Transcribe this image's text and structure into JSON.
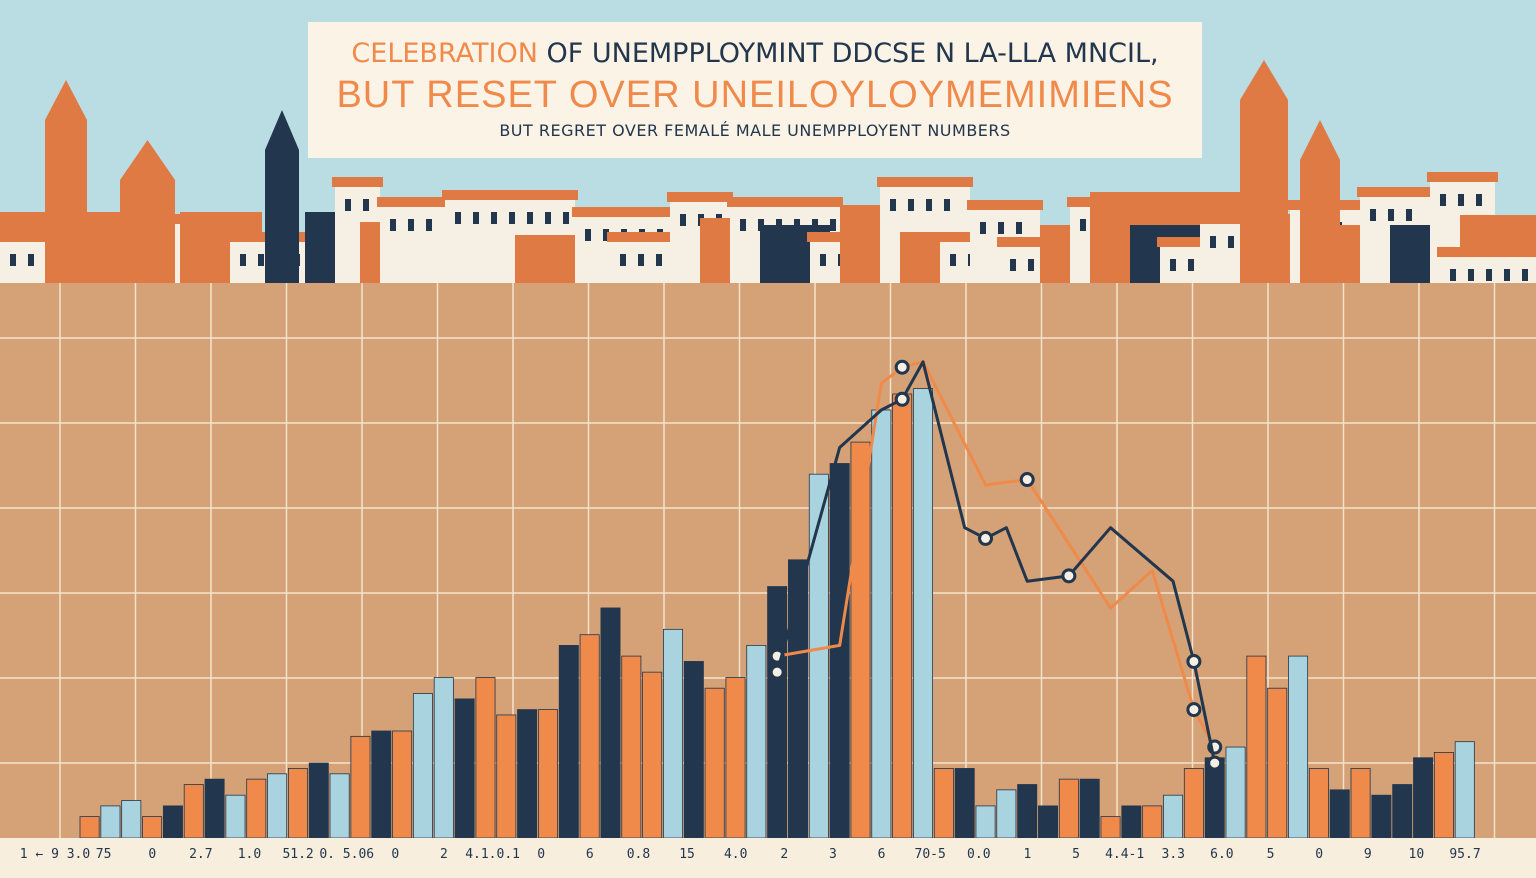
{
  "header": {
    "title_line1_a": "CELEBRATION",
    "title_line1_b": " OF UNEMPPLOYMINT DDCSE N LA-LLA MNCIL,",
    "title_line2": "BUT  RESET OVER UNEILOYLOYMEMIMIENS",
    "subtitle": "BUT REGRET OVER FEMALÉ MALE UNEMPPLOYENT NUMBERS"
  },
  "colors": {
    "sky": "#b9dde3",
    "plot_bg": "#d4a276",
    "grid": "#f3e3cb",
    "orange": "#f08a4b",
    "navy": "#22364d",
    "light_blue": "#a9d4df",
    "roof": "#e07a45",
    "wall": "#f6efe4",
    "base": "#f7eedd"
  },
  "chart_data": {
    "type": "bar",
    "title": "",
    "xlabel": "",
    "ylabel": "",
    "ylim": [
      0,
      100
    ],
    "grid": true,
    "tick_labels": [
      "1  ←  9  3.0",
      "75",
      "0",
      "2.7",
      "1.0",
      "51.2",
      "0.  5.06",
      "0",
      "2",
      "4.1.0.1",
      "0",
      "6",
      "0.8",
      "15",
      "4.0",
      "2",
      "3",
      "6",
      "70-5",
      "0.0",
      "1",
      "5",
      "4.4-1",
      "3.3",
      "6.0",
      "5",
      "0",
      "9",
      "10",
      "95.7"
    ],
    "bars": [
      {
        "color": "orange",
        "value": 4
      },
      {
        "color": "light_blue",
        "value": 6
      },
      {
        "color": "light_blue",
        "value": 7
      },
      {
        "color": "orange",
        "value": 4
      },
      {
        "color": "navy",
        "value": 6
      },
      {
        "color": "orange",
        "value": 10
      },
      {
        "color": "navy",
        "value": 11
      },
      {
        "color": "light_blue",
        "value": 8
      },
      {
        "color": "orange",
        "value": 11
      },
      {
        "color": "light_blue",
        "value": 12
      },
      {
        "color": "orange",
        "value": 13
      },
      {
        "color": "navy",
        "value": 14
      },
      {
        "color": "light_blue",
        "value": 12
      },
      {
        "color": "orange",
        "value": 19
      },
      {
        "color": "navy",
        "value": 20
      },
      {
        "color": "orange",
        "value": 20
      },
      {
        "color": "light_blue",
        "value": 27
      },
      {
        "color": "light_blue",
        "value": 30
      },
      {
        "color": "navy",
        "value": 26
      },
      {
        "color": "orange",
        "value": 30
      },
      {
        "color": "orange",
        "value": 23
      },
      {
        "color": "navy",
        "value": 24
      },
      {
        "color": "orange",
        "value": 24
      },
      {
        "color": "navy",
        "value": 36
      },
      {
        "color": "orange",
        "value": 38
      },
      {
        "color": "navy",
        "value": 43
      },
      {
        "color": "orange",
        "value": 34
      },
      {
        "color": "orange",
        "value": 31
      },
      {
        "color": "light_blue",
        "value": 39
      },
      {
        "color": "navy",
        "value": 33
      },
      {
        "color": "orange",
        "value": 28
      },
      {
        "color": "orange",
        "value": 30
      },
      {
        "color": "light_blue",
        "value": 36
      },
      {
        "color": "navy",
        "value": 47
      },
      {
        "color": "navy",
        "value": 52
      },
      {
        "color": "light_blue",
        "value": 68
      },
      {
        "color": "navy",
        "value": 70
      },
      {
        "color": "orange",
        "value": 74
      },
      {
        "color": "light_blue",
        "value": 80
      },
      {
        "color": "orange",
        "value": 83
      },
      {
        "color": "light_blue",
        "value": 84
      },
      {
        "color": "orange",
        "value": 13
      },
      {
        "color": "navy",
        "value": 13
      },
      {
        "color": "light_blue",
        "value": 6
      },
      {
        "color": "light_blue",
        "value": 9
      },
      {
        "color": "navy",
        "value": 10
      },
      {
        "color": "navy",
        "value": 6
      },
      {
        "color": "orange",
        "value": 11
      },
      {
        "color": "navy",
        "value": 11
      },
      {
        "color": "orange",
        "value": 4
      },
      {
        "color": "navy",
        "value": 6
      },
      {
        "color": "orange",
        "value": 6
      },
      {
        "color": "light_blue",
        "value": 8
      },
      {
        "color": "orange",
        "value": 13
      },
      {
        "color": "navy",
        "value": 15
      },
      {
        "color": "light_blue",
        "value": 17
      },
      {
        "color": "orange",
        "value": 34
      },
      {
        "color": "orange",
        "value": 28
      },
      {
        "color": "light_blue",
        "value": 34
      },
      {
        "color": "orange",
        "value": 13
      },
      {
        "color": "navy",
        "value": 9
      },
      {
        "color": "orange",
        "value": 13
      },
      {
        "color": "navy",
        "value": 8
      },
      {
        "color": "navy",
        "value": 10
      },
      {
        "color": "navy",
        "value": 15
      },
      {
        "color": "orange",
        "value": 16
      },
      {
        "color": "light_blue",
        "value": 18
      }
    ],
    "series": [
      {
        "color": "orange",
        "x": [
          33,
          36,
          38,
          39,
          40,
          43,
          45,
          49,
          51,
          53,
          54
        ],
        "values": [
          34,
          36,
          85,
          88,
          89,
          66,
          67,
          43,
          50,
          24,
          17
        ]
      },
      {
        "color": "navy",
        "x": [
          33,
          36,
          38,
          39,
          40,
          42,
          43,
          44,
          45,
          47,
          49,
          52,
          53,
          54
        ],
        "values": [
          31,
          73,
          80,
          82,
          89,
          58,
          56,
          58,
          48,
          49,
          58,
          48,
          33,
          14
        ]
      }
    ]
  }
}
